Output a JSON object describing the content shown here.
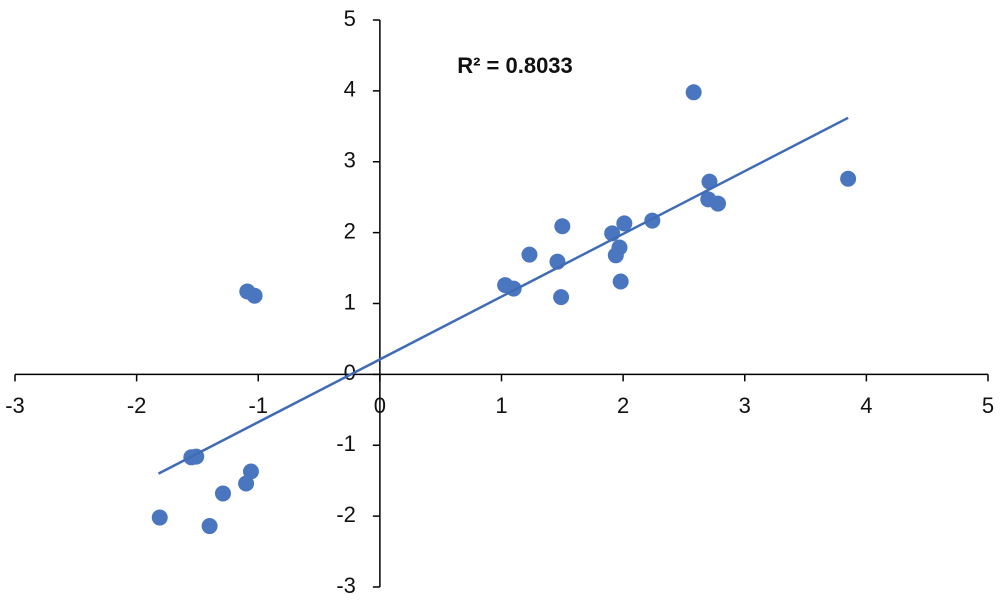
{
  "chart_data": {
    "type": "scatter",
    "annotation": "R² = 0.8033",
    "color": "#4a76c0",
    "x": [
      2.58,
      3.85,
      2.71,
      2.7,
      2.78,
      2.24,
      2.01,
      1.5,
      1.91,
      1.97,
      1.94,
      1.23,
      1.46,
      1.98,
      1.03,
      1.1,
      1.49,
      -1.09,
      -1.03,
      -1.51,
      -1.55,
      -1.06,
      -1.1,
      -1.29,
      -1.81,
      -1.4
    ],
    "values": [
      3.98,
      2.76,
      2.72,
      2.47,
      2.41,
      2.17,
      2.13,
      2.09,
      1.99,
      1.79,
      1.68,
      1.69,
      1.59,
      1.31,
      1.26,
      1.21,
      1.09,
      1.17,
      1.11,
      -1.16,
      -1.17,
      -1.37,
      -1.54,
      -1.68,
      -2.02,
      -2.14
    ],
    "trendline": {
      "x": [
        -1.82,
        3.85
      ],
      "y": [
        -1.4,
        3.62
      ],
      "color": "#3f6cb5"
    },
    "xlim": [
      -3,
      5
    ],
    "ylim": [
      -3,
      5
    ],
    "xticks": [
      -3,
      -2,
      -1,
      0,
      1,
      2,
      3,
      4,
      5
    ],
    "yticks": [
      -3,
      -2,
      -1,
      0,
      1,
      2,
      3,
      4,
      5
    ]
  }
}
